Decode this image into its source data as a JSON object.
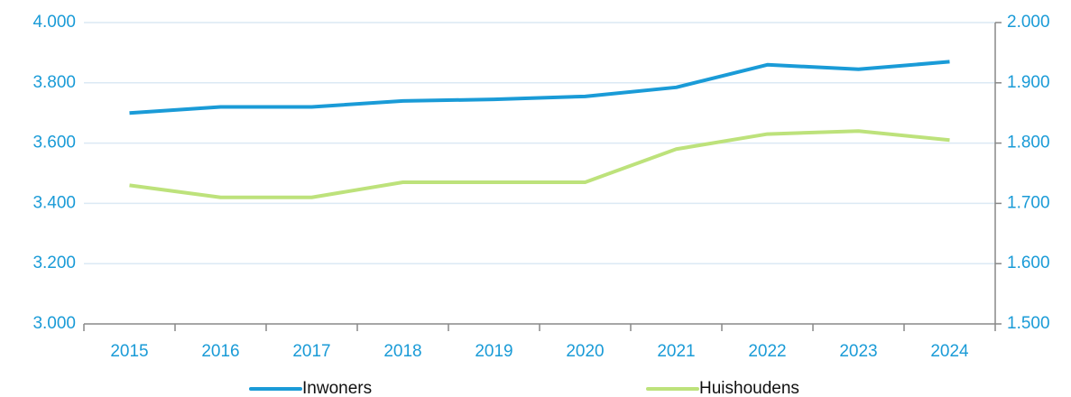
{
  "chart_data": {
    "type": "line",
    "categories": [
      "2015",
      "2016",
      "2017",
      "2018",
      "2019",
      "2020",
      "2021",
      "2022",
      "2023",
      "2024"
    ],
    "series": [
      {
        "name": "Inwoners",
        "color": "#1a9bd7",
        "values": [
          3700,
          3720,
          3720,
          3740,
          3745,
          3755,
          3785,
          3860,
          3845,
          3870
        ]
      },
      {
        "name": "Huishoudens",
        "color": "#bde27b",
        "axis": "y2",
        "values": [
          1730,
          1710,
          1710,
          1735,
          1735,
          1735,
          1790,
          1815,
          1820,
          1805
        ]
      }
    ],
    "ylim": [
      3000,
      4000
    ],
    "yticks": [
      {
        "value": 3000,
        "label": "3.000"
      },
      {
        "value": 3200,
        "label": "3.200"
      },
      {
        "value": 3400,
        "label": "3.400"
      },
      {
        "value": 3600,
        "label": "3.600"
      },
      {
        "value": 3800,
        "label": "3.800"
      },
      {
        "value": 4000,
        "label": "4.000"
      }
    ],
    "y2lim": [
      1500,
      2000
    ],
    "y2ticks": [
      {
        "value": 1500,
        "label": "1.500"
      },
      {
        "value": 1600,
        "label": "1.600"
      },
      {
        "value": 1700,
        "label": "1.700"
      },
      {
        "value": 1800,
        "label": "1.800"
      },
      {
        "value": 1900,
        "label": "1.900"
      },
      {
        "value": 2000,
        "label": "2.000"
      }
    ],
    "grid": true,
    "legend": "bottom"
  }
}
